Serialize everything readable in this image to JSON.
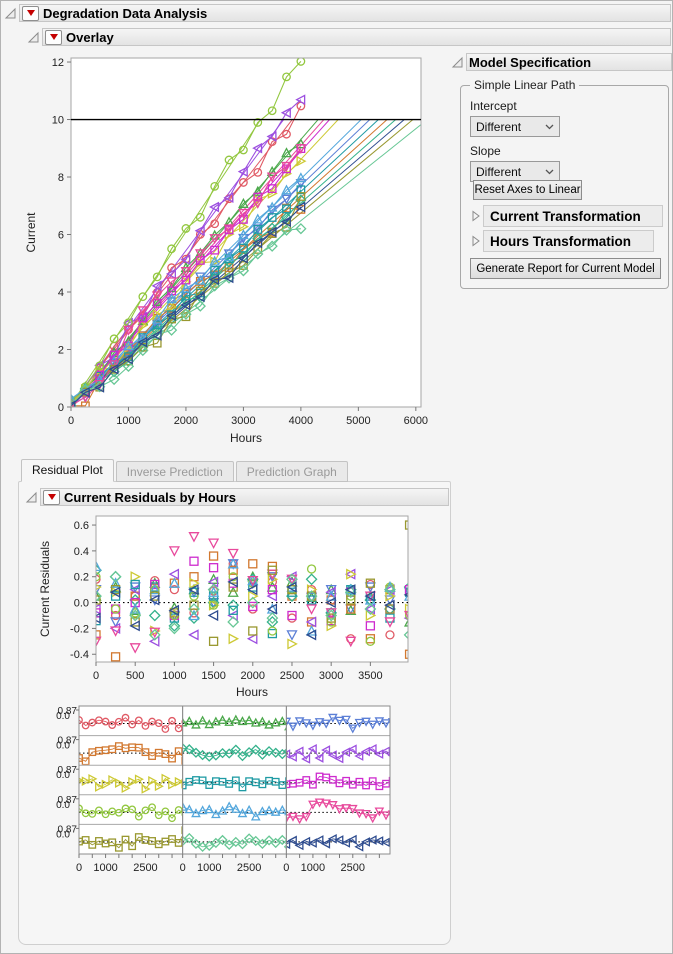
{
  "sections": {
    "root": "Degradation Data Analysis",
    "overlay": "Overlay",
    "model_spec": "Model Specification",
    "residuals": "Current Residuals by Hours"
  },
  "model_spec": {
    "group_title": "Simple Linear Path",
    "intercept_label": "Intercept",
    "intercept_value": "Different",
    "slope_label": "Slope",
    "slope_value": "Different",
    "reset_button": "Reset Axes to Linear",
    "current_transformation": "Current Transformation",
    "hours_transformation": "Hours Transformation",
    "generate_button": "Generate Report for Current Model"
  },
  "tabs": [
    {
      "label": "Residual Plot",
      "active": true
    },
    {
      "label": "Inverse Prediction",
      "active": false
    },
    {
      "label": "Prediction Graph",
      "active": false
    }
  ],
  "chart_data": {
    "sample_hours_step": 250,
    "data_max_hours": 4000,
    "threshold_current": 10,
    "series": [
      {
        "unit": "1",
        "color": "#E05A65",
        "marker": "circle",
        "cross_hours": 3850,
        "residuals": [
          0.18,
          -0.1,
          0.05,
          0.17,
          0.1,
          -0.08,
          0.09,
          0.3,
          -0.05,
          0.16,
          -0.12,
          0.1,
          0.02,
          -0.28,
          0.14,
          -0.25,
          0.08
        ]
      },
      {
        "unit": "2",
        "color": "#4BA84B",
        "marker": "triangle-up",
        "cross_hours": 4300,
        "residuals": [
          0.05,
          0.12,
          -0.06,
          0.15,
          -0.04,
          0.1,
          0.18,
          0.08,
          0.2,
          0.12,
          0.16,
          0.04,
          0.1,
          -0.06,
          0.05,
          0.12,
          -0.15
        ]
      },
      {
        "unit": "3",
        "color": "#5B7FD6",
        "marker": "triangle-down",
        "cross_hours": 5200,
        "residuals": [
          0.1,
          -0.15,
          0.12,
          0.02,
          -0.1,
          0.08,
          0.0,
          0.3,
          0.15,
          0.2,
          -0.25,
          0.04,
          0.1,
          -0.05,
          0.12,
          0.02,
          0.08
        ]
      },
      {
        "unit": "4",
        "color": "#D2782F",
        "marker": "square",
        "cross_hours": 5500,
        "residuals": [
          -0.25,
          -0.42,
          0.05,
          0.12,
          0.15,
          0.2,
          0.36,
          0.25,
          0.3,
          0.28,
          0.05,
          -0.15,
          0.02,
          -0.05,
          -0.28,
          0.1,
          -0.4
        ]
      },
      {
        "unit": "5",
        "color": "#35B28C",
        "marker": "diamond",
        "cross_hours": 5650,
        "residuals": [
          0.25,
          0.2,
          0.02,
          -0.1,
          -0.18,
          -0.12,
          0.0,
          -0.02,
          0.18,
          -0.15,
          0.05,
          0.18,
          -0.08,
          0.1,
          0.02,
          -0.05,
          0.12
        ]
      },
      {
        "unit": "6",
        "color": "#9C4FE0",
        "marker": "triangle-left",
        "cross_hours": 3700,
        "residuals": [
          -0.05,
          -0.2,
          0.1,
          -0.3,
          0.22,
          -0.25,
          0.16,
          -0.1,
          -0.28,
          0.05,
          0.2,
          -0.15,
          0.08,
          0.22,
          -0.05,
          0.1,
          -0.12
        ]
      },
      {
        "unit": "7",
        "color": "#CDC934",
        "marker": "triangle-right",
        "cross_hours": 4650,
        "residuals": [
          0.12,
          0.08,
          0.2,
          -0.22,
          -0.08,
          0.15,
          -0.02,
          -0.28,
          0.05,
          0.18,
          -0.32,
          0.1,
          -0.18,
          0.22,
          -0.1,
          0.05,
          -0.05
        ]
      },
      {
        "unit": "8",
        "color": "#1F9BA4",
        "marker": "square",
        "cross_hours": 5350,
        "residuals": [
          -0.14,
          0.05,
          0.14,
          0.12,
          -0.12,
          0.08,
          0.05,
          -0.06,
          0.12,
          -0.24,
          0.08,
          0.02,
          -0.08,
          0.1,
          0.05,
          -0.12,
          0.08
        ]
      },
      {
        "unit": "9",
        "color": "#CE2BCE",
        "marker": "square",
        "cross_hours": 4500,
        "residuals": [
          -0.08,
          -0.05,
          0.0,
          0.14,
          -0.1,
          0.32,
          0.27,
          0.15,
          -0.03,
          0.1,
          -0.1,
          0.05,
          -0.14,
          0.08,
          -0.18,
          -0.05,
          0.1
        ]
      },
      {
        "unit": "10",
        "color": "#92C73F",
        "marker": "circle",
        "cross_hours": 3300,
        "residuals": [
          0.2,
          -0.05,
          -0.08,
          0.1,
          -0.1,
          0.05,
          -0.02,
          0.2,
          0.15,
          -0.22,
          0.1,
          0.26,
          -0.15,
          0.05,
          -0.3,
          0.12,
          -0.1
        ]
      },
      {
        "unit": "11",
        "color": "#54A7DC",
        "marker": "triangle-up",
        "cross_hours": 5050,
        "residuals": [
          0.28,
          0.15,
          -0.05,
          0.1,
          0.15,
          -0.1,
          0.08,
          0.3,
          0.17,
          -0.05,
          0.12,
          -0.22,
          0.05,
          0.1,
          0.02,
          0.12,
          0.05
        ]
      },
      {
        "unit": "12",
        "color": "#E8499C",
        "marker": "triangle-down",
        "cross_hours": 4400,
        "residuals": [
          -0.3,
          -0.22,
          -0.35,
          -0.23,
          0.4,
          0.51,
          0.46,
          0.38,
          0.17,
          0.22,
          0.18,
          -0.05,
          -0.08,
          -0.3,
          0.05,
          -0.15,
          -0.1
        ]
      },
      {
        "unit": "13",
        "color": "#99982F",
        "marker": "square",
        "cross_hours": 5950,
        "residuals": [
          0.02,
          0.1,
          -0.15,
          0.05,
          -0.08,
          -0.02,
          -0.3,
          0.12,
          -0.22,
          0.25,
          0.1,
          0.05,
          -0.12,
          0.02,
          0.15,
          -0.05,
          0.6
        ]
      },
      {
        "unit": "14",
        "color": "#67C795",
        "marker": "diamond",
        "cross_hours": 6200,
        "residuals": [
          0.05,
          0.2,
          -0.1,
          -0.25,
          -0.2,
          -0.05,
          0.1,
          -0.15,
          0.0,
          -0.12,
          0.18,
          0.05,
          -0.1,
          0.08,
          -0.05,
          0.1,
          -0.25
        ]
      },
      {
        "unit": "15",
        "color": "#2E4C8F",
        "marker": "triangle-left",
        "cross_hours": 5800,
        "residuals": [
          -0.12,
          0.08,
          -0.18,
          0.02,
          -0.06,
          0.1,
          -0.1,
          0.16,
          0.1,
          -0.05,
          0.12,
          -0.25,
          0.0,
          0.1,
          0.05,
          -0.02,
          0.06
        ]
      }
    ],
    "overlay": {
      "type": "line",
      "xlabel": "Hours",
      "ylabel": "Current",
      "xlim": [
        0,
        6090
      ],
      "ylim": [
        0,
        12.14
      ],
      "xticks": [
        "0",
        "1000",
        "2000",
        "3000",
        "4000",
        "5000",
        "6000"
      ],
      "yticks": [
        "0",
        "2",
        "4",
        "6",
        "8",
        "10",
        "12"
      ],
      "threshold": 10
    },
    "residual_scatter": {
      "type": "scatter",
      "xlabel": "Hours",
      "ylabel": "Current Residuals",
      "xlim": [
        0,
        3980
      ],
      "ylim": [
        -0.46,
        0.67
      ],
      "xticks": [
        "0",
        "500",
        "1000",
        "1500",
        "2000",
        "2500",
        "3000",
        "3500"
      ],
      "yticks": [
        "0.6",
        "0.4",
        "0.2",
        "0.0",
        "-0.2",
        "-0.4"
      ],
      "zero_line": 0
    },
    "residual_trellis": {
      "type": "line",
      "rows": 5,
      "cols": 3,
      "cell_xlim": [
        0,
        3900
      ],
      "cell_ylim": [
        -0.62,
        0.9
      ],
      "xtick_values": [
        0,
        500,
        1000,
        1500,
        2000,
        2500,
        3000,
        3500
      ],
      "xtick_labels": [
        "0",
        "1000",
        "2500"
      ],
      "xtick_label_values": [
        0,
        1000,
        2500
      ],
      "ytick_labels": [
        "0.87",
        "0.0"
      ],
      "zero_line": 0
    }
  }
}
